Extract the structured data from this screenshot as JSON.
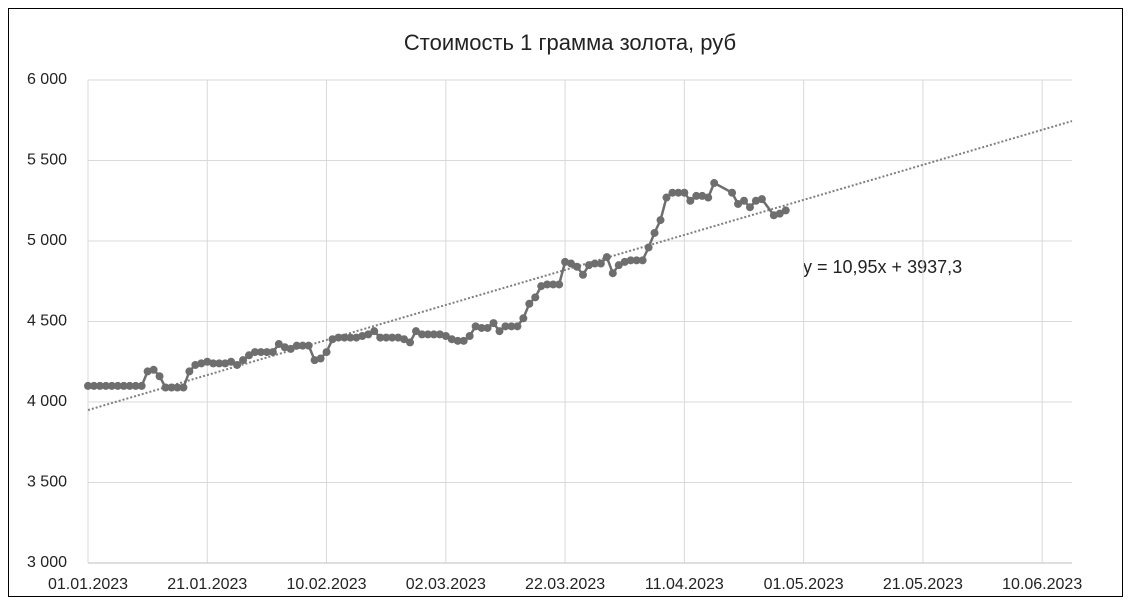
{
  "chart_data": {
    "type": "line",
    "title": "Стоимость 1 грамма золота, руб",
    "annotation": "y = 10,95x + 3937,3",
    "xlim": [
      "01.01.2023",
      "15.06.2023"
    ],
    "xticks": [
      "01.01.2023",
      "21.01.2023",
      "10.02.2023",
      "02.03.2023",
      "22.03.2023",
      "11.04.2023",
      "01.05.2023",
      "21.05.2023",
      "10.06.2023"
    ],
    "ylim": [
      3000,
      6000
    ],
    "yticks": [
      {
        "value": 3000,
        "label": "3 000"
      },
      {
        "value": 3500,
        "label": "3 500"
      },
      {
        "value": 4000,
        "label": "4 000"
      },
      {
        "value": 4500,
        "label": "4 500"
      },
      {
        "value": 5000,
        "label": "5 000"
      },
      {
        "value": 5500,
        "label": "5 500"
      },
      {
        "value": 6000,
        "label": "6 000"
      }
    ],
    "grid": true,
    "series": [
      {
        "color": "#6e6e6e",
        "x": [
          "01.01.2023",
          "02.01.2023",
          "03.01.2023",
          "04.01.2023",
          "05.01.2023",
          "06.01.2023",
          "07.01.2023",
          "08.01.2023",
          "09.01.2023",
          "10.01.2023",
          "11.01.2023",
          "12.01.2023",
          "13.01.2023",
          "14.01.2023",
          "15.01.2023",
          "16.01.2023",
          "17.01.2023",
          "18.01.2023",
          "19.01.2023",
          "20.01.2023",
          "21.01.2023",
          "22.01.2023",
          "23.01.2023",
          "24.01.2023",
          "25.01.2023",
          "26.01.2023",
          "27.01.2023",
          "28.01.2023",
          "29.01.2023",
          "30.01.2023",
          "31.01.2023",
          "01.02.2023",
          "02.02.2023",
          "03.02.2023",
          "04.02.2023",
          "05.02.2023",
          "06.02.2023",
          "07.02.2023",
          "08.02.2023",
          "09.02.2023",
          "10.02.2023",
          "11.02.2023",
          "12.02.2023",
          "13.02.2023",
          "14.02.2023",
          "15.02.2023",
          "16.02.2023",
          "17.02.2023",
          "18.02.2023",
          "19.02.2023",
          "20.02.2023",
          "21.02.2023",
          "22.02.2023",
          "23.02.2023",
          "24.02.2023",
          "25.02.2023",
          "26.02.2023",
          "27.02.2023",
          "28.02.2023",
          "01.03.2023",
          "02.03.2023",
          "03.03.2023",
          "04.03.2023",
          "05.03.2023",
          "06.03.2023",
          "07.03.2023",
          "08.03.2023",
          "09.03.2023",
          "10.03.2023",
          "11.03.2023",
          "12.03.2023",
          "13.03.2023",
          "14.03.2023",
          "15.03.2023",
          "16.03.2023",
          "17.03.2023",
          "18.03.2023",
          "19.03.2023",
          "20.03.2023",
          "21.03.2023",
          "22.03.2023",
          "23.03.2023",
          "24.03.2023",
          "25.03.2023",
          "26.03.2023",
          "27.03.2023",
          "28.03.2023",
          "29.03.2023",
          "30.03.2023",
          "31.03.2023",
          "01.04.2023",
          "02.04.2023",
          "03.04.2023",
          "04.04.2023",
          "05.04.2023",
          "06.04.2023",
          "07.04.2023",
          "08.04.2023",
          "09.04.2023",
          "10.04.2023",
          "11.04.2023",
          "12.04.2023",
          "13.04.2023",
          "14.04.2023",
          "15.04.2023",
          "16.04.2023",
          "19.04.2023",
          "20.04.2023",
          "21.04.2023",
          "22.04.2023",
          "23.04.2023",
          "24.04.2023",
          "26.04.2023",
          "27.04.2023",
          "28.04.2023"
        ],
        "values": [
          4100,
          4100,
          4100,
          4100,
          4100,
          4100,
          4100,
          4100,
          4100,
          4100,
          4190,
          4200,
          4160,
          4090,
          4090,
          4090,
          4090,
          4190,
          4230,
          4240,
          4250,
          4240,
          4240,
          4240,
          4250,
          4230,
          4260,
          4290,
          4310,
          4310,
          4310,
          4310,
          4360,
          4340,
          4330,
          4350,
          4350,
          4350,
          4260,
          4270,
          4310,
          4390,
          4400,
          4400,
          4400,
          4400,
          4410,
          4420,
          4440,
          4400,
          4400,
          4400,
          4400,
          4390,
          4370,
          4440,
          4420,
          4420,
          4420,
          4420,
          4410,
          4390,
          4380,
          4380,
          4410,
          4470,
          4460,
          4460,
          4490,
          4440,
          4470,
          4470,
          4470,
          4520,
          4610,
          4650,
          4720,
          4730,
          4730,
          4730,
          4870,
          4860,
          4840,
          4790,
          4850,
          4860,
          4860,
          4900,
          4800,
          4850,
          4870,
          4880,
          4880,
          4880,
          4960,
          5050,
          5130,
          5270,
          5300,
          5300,
          5300,
          5250,
          5280,
          5280,
          5270,
          5360,
          5300,
          5230,
          5250,
          5210,
          5250,
          5260,
          5160,
          5170,
          5190
        ]
      }
    ],
    "trendline": {
      "color": "#7f7f7f",
      "x": [
        "01.01.2023",
        "15.06.2023"
      ],
      "values": [
        3950,
        5745
      ]
    }
  }
}
